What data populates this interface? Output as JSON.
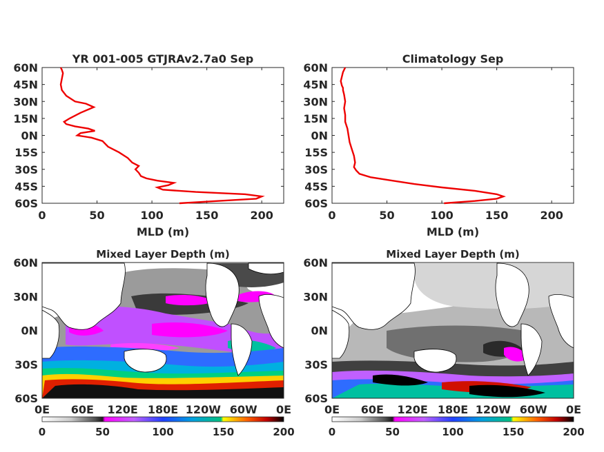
{
  "chart_data": [
    {
      "type": "line",
      "title": "YR 001-005 GTJRAv2.7a0 Sep",
      "xlabel": "MLD (m)",
      "ylabel": "",
      "xlim": [
        0,
        220
      ],
      "ylim": [
        -60,
        60
      ],
      "x_ticks": [
        "0",
        "50",
        "100",
        "150",
        "200"
      ],
      "y_ticks": [
        "60N",
        "45N",
        "30N",
        "15N",
        "0N",
        "15S",
        "30S",
        "45S",
        "60S"
      ],
      "color": "#ee0000",
      "series": [
        {
          "x": [
            125,
            160,
            195,
            200,
            185,
            140,
            110,
            105,
            115,
            120,
            105,
            95,
            90,
            88,
            85,
            88,
            82,
            78,
            70,
            60,
            55,
            45,
            32,
            35,
            48,
            42,
            30,
            22,
            20,
            25,
            35,
            47,
            40,
            30,
            22,
            18,
            17,
            18,
            19,
            18,
            17
          ],
          "y": [
            -60,
            -58,
            -56,
            -54,
            -52,
            -50,
            -48,
            -46,
            -44,
            -42,
            -40,
            -38,
            -36,
            -33,
            -30,
            -27,
            -24,
            -20,
            -15,
            -10,
            -5,
            -2,
            0,
            2,
            4,
            6,
            8,
            10,
            12,
            15,
            20,
            25,
            28,
            30,
            35,
            40,
            45,
            50,
            55,
            58,
            60
          ]
        }
      ]
    },
    {
      "type": "line",
      "title": "Climatology Sep",
      "xlabel": "MLD (m)",
      "ylabel": "",
      "xlim": [
        0,
        220
      ],
      "ylim": [
        -60,
        60
      ],
      "x_ticks": [
        "0",
        "50",
        "100",
        "150",
        "200"
      ],
      "y_ticks": [
        "60N",
        "45N",
        "30N",
        "15N",
        "0N",
        "15S",
        "30S",
        "45S",
        "60S"
      ],
      "color": "#ee0000",
      "series": [
        {
          "x": [
            102,
            130,
            150,
            156,
            150,
            130,
            100,
            75,
            55,
            35,
            25,
            22,
            20,
            21,
            20,
            18,
            16,
            15,
            14,
            12,
            12,
            11,
            12,
            11,
            10,
            10,
            9,
            8,
            9,
            10,
            12
          ],
          "y": [
            -60,
            -58,
            -56,
            -54,
            -52,
            -49,
            -46,
            -43,
            -40,
            -37,
            -34,
            -31,
            -28,
            -24,
            -18,
            -12,
            -6,
            0,
            6,
            12,
            18,
            24,
            30,
            36,
            40,
            42,
            44,
            48,
            52,
            56,
            60
          ]
        }
      ]
    },
    {
      "type": "heatmap",
      "title": "Mixed Layer Depth (m)",
      "x_ticks": [
        "0E",
        "60E",
        "120E",
        "180E",
        "120W",
        "60W",
        "0E"
      ],
      "y_ticks": [
        "60N",
        "30N",
        "0N",
        "30S",
        "60S"
      ],
      "colorbar_ticks": [
        "0",
        "50",
        "100",
        "150",
        "200"
      ],
      "colorbar_range": [
        0,
        200
      ]
    },
    {
      "type": "heatmap",
      "title": "Mixed Layer Depth (m)",
      "x_ticks": [
        "0E",
        "60E",
        "120E",
        "180E",
        "120W",
        "60W",
        "0E"
      ],
      "y_ticks": [
        "60N",
        "30N",
        "0N",
        "30S",
        "60S"
      ],
      "colorbar_ticks": [
        "0",
        "50",
        "100",
        "150",
        "200"
      ],
      "colorbar_range": [
        0,
        200
      ]
    }
  ]
}
